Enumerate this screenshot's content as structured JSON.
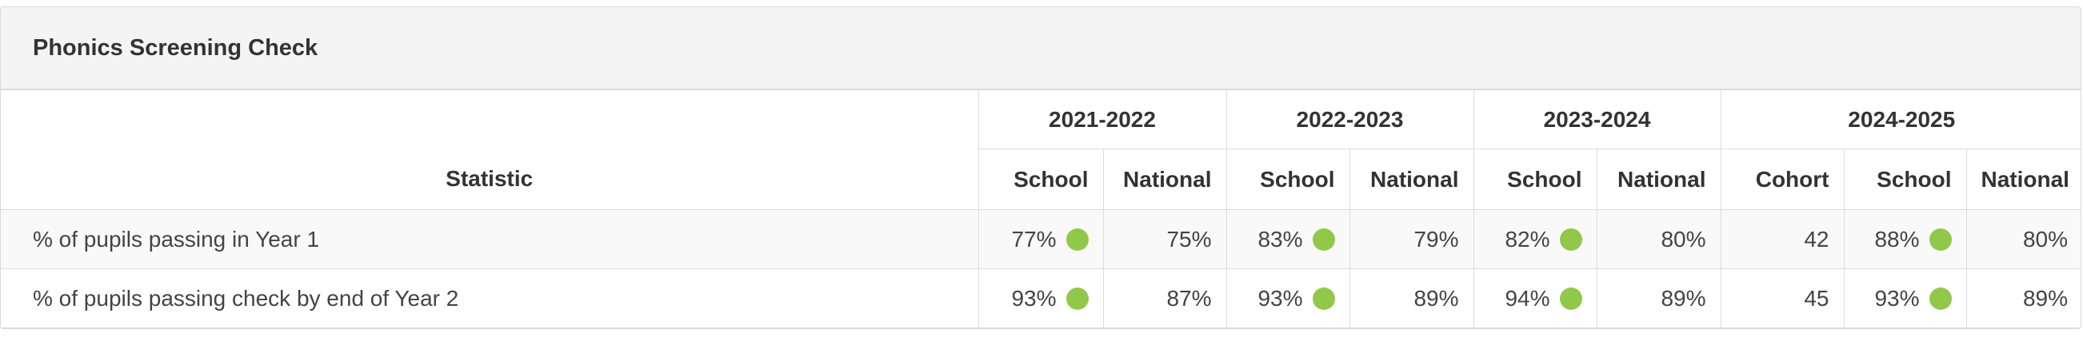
{
  "header": {
    "title": "Phonics Screening Check"
  },
  "table": {
    "stat_header": "Statistic",
    "years": [
      {
        "label": "2021-2022",
        "columns": [
          "School",
          "National"
        ]
      },
      {
        "label": "2022-2023",
        "columns": [
          "School",
          "National"
        ]
      },
      {
        "label": "2023-2024",
        "columns": [
          "School",
          "National"
        ]
      },
      {
        "label": "2024-2025",
        "columns": [
          "Cohort",
          "School",
          "National"
        ]
      }
    ],
    "rows": [
      {
        "label": "% of pupils passing in Year 1",
        "cells": [
          "77%",
          "75%",
          "83%",
          "79%",
          "82%",
          "80%",
          "42",
          "88%",
          "80%"
        ]
      },
      {
        "label": "% of pupils passing check by end of Year 2",
        "cells": [
          "93%",
          "87%",
          "93%",
          "89%",
          "94%",
          "89%",
          "45",
          "93%",
          "89%"
        ]
      }
    ]
  }
}
